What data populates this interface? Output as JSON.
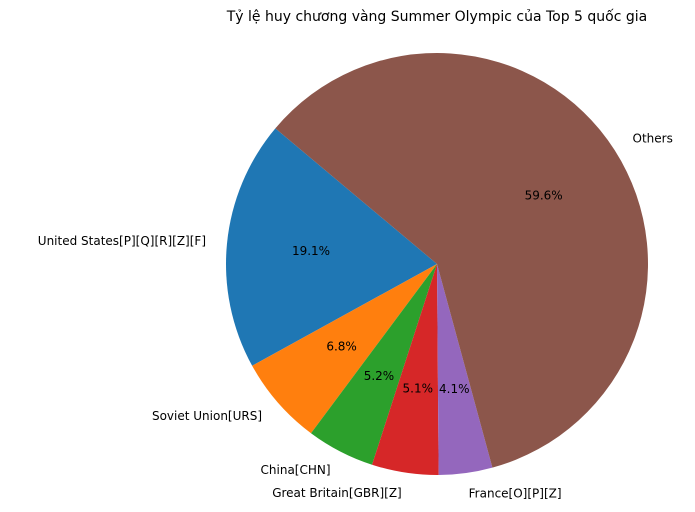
{
  "chart_data": {
    "type": "pie",
    "title": "Tỷ lệ huy chương vàng Summer Olympic của Top 5 quốc gia",
    "start_angle_deg": 140,
    "direction": "counterclockwise",
    "slices": [
      {
        "label": "United States[P][Q][R][Z][F]",
        "value": 19.1,
        "pct_text": "19.1%",
        "color": "#1f77b4"
      },
      {
        "label": "Soviet Union[URS]",
        "value": 6.8,
        "pct_text": "6.8%",
        "color": "#ff7f0e"
      },
      {
        "label": "China[CHN]",
        "value": 5.2,
        "pct_text": "5.2%",
        "color": "#2ca02c"
      },
      {
        "label": "Great Britain[GBR][Z]",
        "value": 5.1,
        "pct_text": "5.1%",
        "color": "#d62728"
      },
      {
        "label": "France[O][P][Z]",
        "value": 4.1,
        "pct_text": "4.1%",
        "color": "#9467bd"
      },
      {
        "label": "Others",
        "value": 59.6,
        "pct_text": "59.6%",
        "color": "#8c564b"
      }
    ]
  }
}
